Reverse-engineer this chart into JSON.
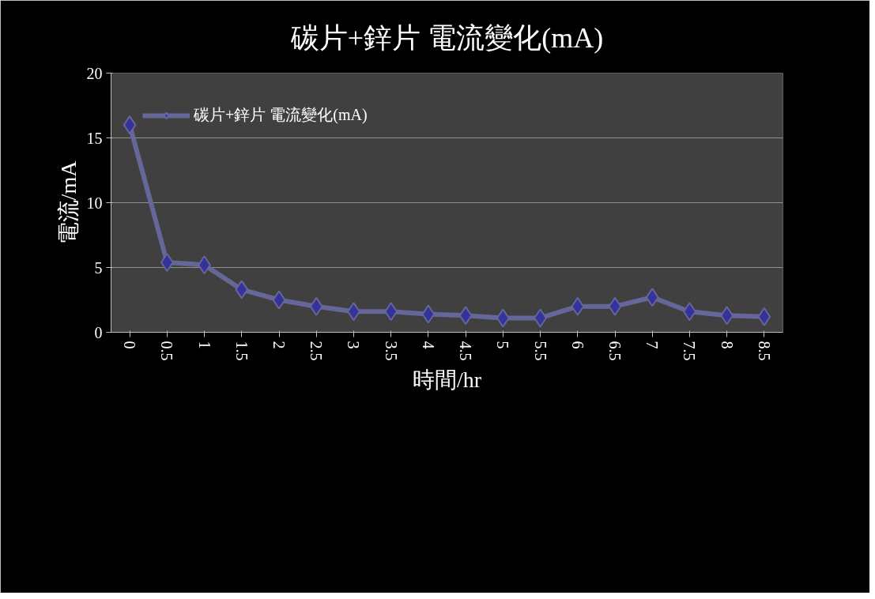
{
  "chart_data": {
    "type": "line",
    "title": "碳片+鋅片 電流變化(mA)",
    "xlabel": "時間/hr",
    "ylabel": "電流/mA",
    "categories": [
      "0",
      "0.5",
      "1",
      "1.5",
      "2",
      "2.5",
      "3",
      "3.5",
      "4",
      "4.5",
      "5",
      "5.5",
      "6",
      "6.5",
      "7",
      "7.5",
      "8",
      "8.5"
    ],
    "series": [
      {
        "name": "碳片+鋅片 電流變化(mA)",
        "color": "#333399",
        "values": [
          16.0,
          5.4,
          5.2,
          3.3,
          2.5,
          2.0,
          1.6,
          1.6,
          1.4,
          1.3,
          1.1,
          1.1,
          2.0,
          2.0,
          2.7,
          1.6,
          1.3,
          1.2
        ]
      }
    ],
    "ylim": [
      0,
      20
    ],
    "yticks": [
      0,
      5,
      10,
      15,
      20
    ],
    "grid": "y",
    "legend": "top left",
    "marker": "diamond",
    "line_style": "solid"
  }
}
